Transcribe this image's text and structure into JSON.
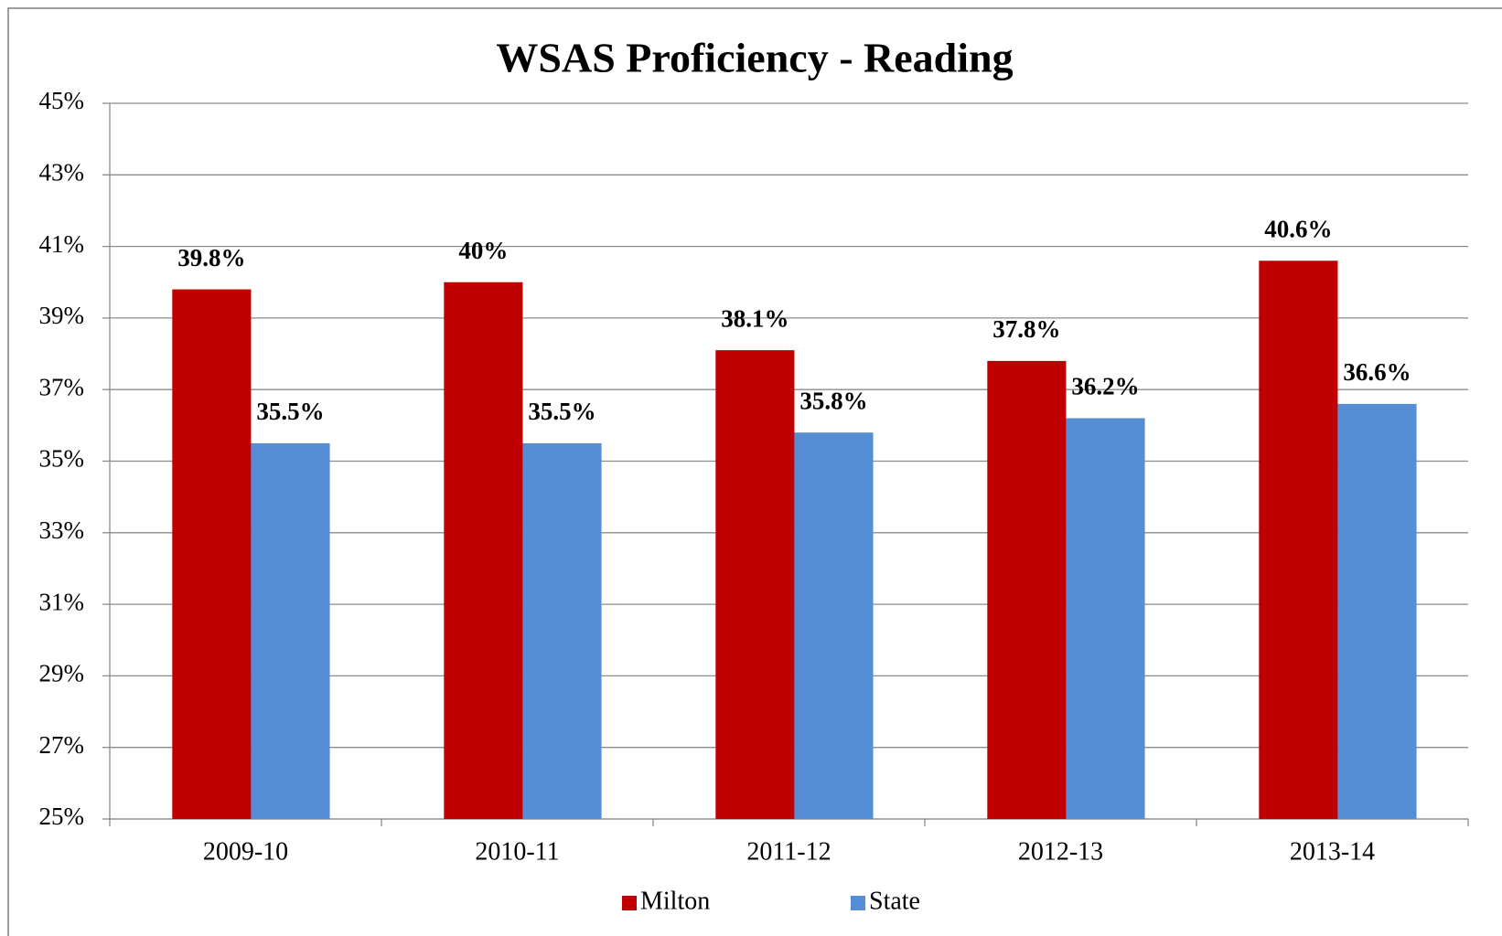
{
  "chart_data": {
    "type": "bar",
    "title": "WSAS Proficiency - Reading",
    "categories": [
      "2009-10",
      "2010-11",
      "2011-12",
      "2012-13",
      "2013-14"
    ],
    "series": [
      {
        "name": "Milton",
        "color": "#c00000",
        "values": [
          39.8,
          40,
          38.1,
          37.8,
          40.6
        ],
        "value_labels": [
          "39.8%",
          "40%",
          "38.1%",
          "37.8%",
          "40.6%"
        ]
      },
      {
        "name": "State",
        "color": "#558ed5",
        "values": [
          35.5,
          35.5,
          35.8,
          36.2,
          36.6
        ],
        "value_labels": [
          "35.5%",
          "35.5%",
          "35.8%",
          "36.2%",
          "36.6%"
        ]
      }
    ],
    "ylim": [
      25,
      45
    ],
    "yticks": [
      {
        "value": 25,
        "label": "25%"
      },
      {
        "value": 27,
        "label": "27%"
      },
      {
        "value": 29,
        "label": "29%"
      },
      {
        "value": 31,
        "label": "31%"
      },
      {
        "value": 33,
        "label": "33%"
      },
      {
        "value": 35,
        "label": "35%"
      },
      {
        "value": 37,
        "label": "37%"
      },
      {
        "value": 39,
        "label": "39%"
      },
      {
        "value": 41,
        "label": "41%"
      },
      {
        "value": 43,
        "label": "43%"
      },
      {
        "value": 45,
        "label": "45%"
      }
    ],
    "grid": true,
    "legend": "bottom"
  }
}
